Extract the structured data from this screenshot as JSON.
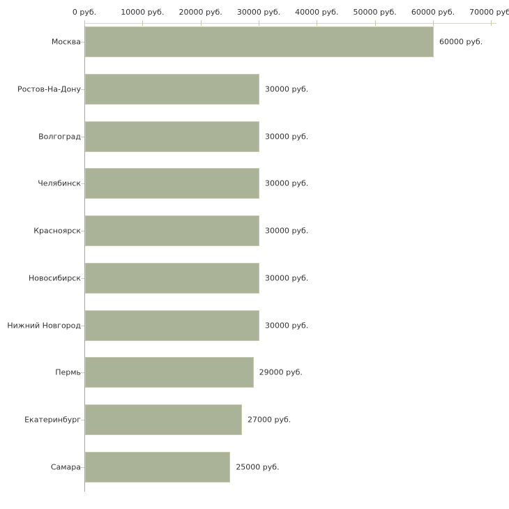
{
  "chart_data": {
    "type": "bar",
    "orientation": "horizontal",
    "title": "",
    "xlabel": "",
    "ylabel": "",
    "categories": [
      "Москва",
      "Ростов-На-Дону",
      "Волгоград",
      "Челябинск",
      "Красноярск",
      "Новосибирск",
      "Нижний Новгород",
      "Пермь",
      "Екатеринбург",
      "Самара"
    ],
    "values": [
      60000,
      30000,
      30000,
      30000,
      30000,
      30000,
      30000,
      29000,
      27000,
      25000
    ],
    "value_labels": [
      "60000 руб.",
      "30000 руб.",
      "30000 руб.",
      "30000 руб.",
      "30000 руб.",
      "30000 руб.",
      "30000 руб.",
      "29000 руб.",
      "27000 руб.",
      "25000 руб."
    ],
    "x_ticks": [
      {
        "value": 0,
        "label": "0 руб."
      },
      {
        "value": 10000,
        "label": "10000 руб."
      },
      {
        "value": 20000,
        "label": "20000 руб."
      },
      {
        "value": 30000,
        "label": "30000 руб."
      },
      {
        "value": 40000,
        "label": "40000 руб."
      },
      {
        "value": 50000,
        "label": "50000 руб."
      },
      {
        "value": 60000,
        "label": "60000 руб."
      },
      {
        "value": 70000,
        "label": "70000 руб."
      }
    ],
    "xlim": [
      0,
      70000
    ],
    "grid": false,
    "legend": null,
    "value_suffix": " руб.",
    "colors": {
      "bar_fill": "#aab298",
      "bar_border": "#c5cab1",
      "x_axis_line": "#d6d6c6",
      "x_tick_mark": "#c9c9a4",
      "y_axis_line": "#a8a8a8",
      "category_tick": "#ccccb0",
      "text": "#333333"
    }
  }
}
